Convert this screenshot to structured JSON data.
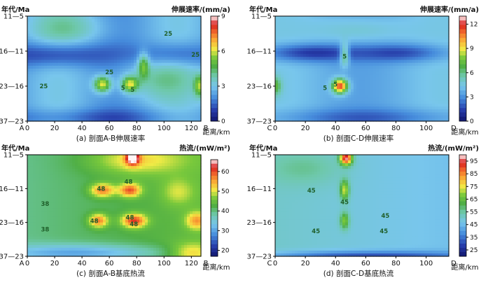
{
  "chart_data": [
    {
      "type": "heatmap",
      "panel": "a",
      "caption": "(a) 剖面A-B伸展速率",
      "ylabel": "年代/Ma",
      "xlabel": "距离/km",
      "start_label": "A",
      "end_label": "B",
      "colorbar_title": "伸展速率/(mm/a)",
      "x_ticks": [
        "0",
        "20",
        "40",
        "60",
        "80",
        "100",
        "120"
      ],
      "y_ticks": [
        "11—5",
        "16—11",
        "23—16",
        "37—23"
      ],
      "colorbar_ticks": [
        "0",
        "3",
        "6",
        "9"
      ],
      "xlim": [
        0,
        127
      ],
      "vlim": [
        0,
        9
      ],
      "contour_labels": [
        {
          "text": "25",
          "x": 103,
          "row": 0.5
        },
        {
          "text": "25",
          "x": 123,
          "row": 1.1
        },
        {
          "text": "25",
          "x": 60,
          "row": 1.6
        },
        {
          "text": "25",
          "x": 12,
          "row": 2.0
        },
        {
          "text": "5",
          "x": 70,
          "row": 2.05
        },
        {
          "text": "5",
          "x": 77,
          "row": 2.1
        }
      ]
    },
    {
      "type": "heatmap",
      "panel": "b",
      "caption": "(b) 剖面C-D伸展速率",
      "ylabel": "年代/Ma",
      "xlabel": "距离/km",
      "start_label": "C",
      "end_label": "D",
      "colorbar_title": "伸展速率/(mm/a)",
      "x_ticks": [
        "0",
        "20",
        "40",
        "60",
        "80",
        "100"
      ],
      "y_ticks": [
        "11—5",
        "16—11",
        "23—16",
        "37—23"
      ],
      "colorbar_ticks": [
        "0",
        "3",
        "6",
        "9",
        "12"
      ],
      "xlim": [
        0,
        115
      ],
      "vlim": [
        0,
        13
      ],
      "contour_labels": [
        {
          "text": "5",
          "x": 46,
          "row": 1.15
        },
        {
          "text": "5",
          "x": 33,
          "row": 2.05
        },
        {
          "text": "5",
          "x": 40,
          "row": 1.95
        }
      ]
    },
    {
      "type": "heatmap",
      "panel": "c",
      "caption": "(c) 剖面A-B基底热流",
      "ylabel": "年代/Ma",
      "xlabel": "距离/km",
      "start_label": "A",
      "end_label": "B",
      "colorbar_title": "热流/(mW/m²)",
      "x_ticks": [
        "0",
        "20",
        "40",
        "60",
        "80",
        "100",
        "120"
      ],
      "y_ticks": [
        "11—5",
        "16—11",
        "23—16",
        "37—23"
      ],
      "colorbar_ticks": [
        "20",
        "30",
        "40",
        "50",
        "60"
      ],
      "xlim": [
        0,
        127
      ],
      "vlim": [
        17,
        66
      ],
      "contour_labels": [
        {
          "text": "48",
          "x": 74,
          "row": 0.8
        },
        {
          "text": "48",
          "x": 54,
          "row": 1.0
        },
        {
          "text": "38",
          "x": 13,
          "row": 1.45
        },
        {
          "text": "38",
          "x": 13,
          "row": 2.2
        },
        {
          "text": "48",
          "x": 49,
          "row": 1.95
        },
        {
          "text": "48",
          "x": 75,
          "row": 1.85
        },
        {
          "text": "48",
          "x": 78,
          "row": 2.05
        }
      ]
    },
    {
      "type": "heatmap",
      "panel": "d",
      "caption": "(d) 剖面C-D基底热流",
      "ylabel": "年代/Ma",
      "xlabel": "距离/km",
      "start_label": "C",
      "end_label": "D",
      "colorbar_title": "热流/(mW/m²)",
      "x_ticks": [
        "0",
        "20",
        "40",
        "60",
        "80",
        "100"
      ],
      "y_ticks": [
        "11—5",
        "16—11",
        "23—16",
        "37—23"
      ],
      "colorbar_ticks": [
        "25",
        "35",
        "45",
        "55",
        "65",
        "75",
        "85",
        "95"
      ],
      "xlim": [
        0,
        115
      ],
      "vlim": [
        20,
        100
      ],
      "contour_labels": [
        {
          "text": "45",
          "x": 24,
          "row": 1.05
        },
        {
          "text": "45",
          "x": 46,
          "row": 1.4
        },
        {
          "text": "45",
          "x": 73,
          "row": 1.8
        },
        {
          "text": "45",
          "x": 27,
          "row": 2.25
        },
        {
          "text": "45",
          "x": 72,
          "row": 2.25
        }
      ]
    }
  ]
}
